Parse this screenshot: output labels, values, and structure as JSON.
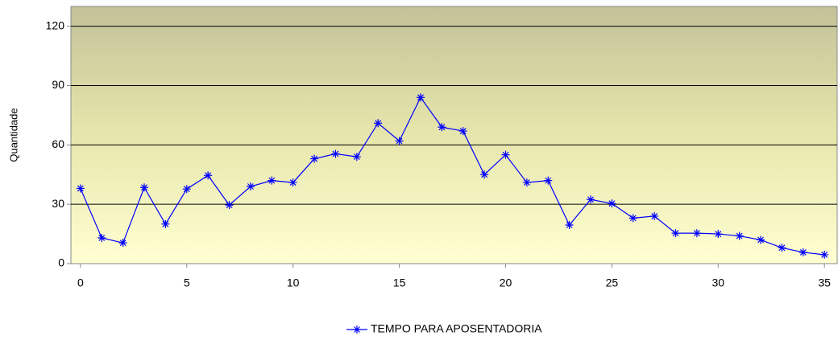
{
  "chart_data": {
    "type": "line",
    "y_label": "Quantidade",
    "x": [
      0,
      1,
      2,
      3,
      4,
      5,
      6,
      7,
      8,
      9,
      10,
      11,
      12,
      13,
      14,
      15,
      16,
      17,
      18,
      19,
      20,
      21,
      22,
      23,
      24,
      25,
      26,
      27,
      28,
      29,
      30,
      31,
      32,
      33,
      34,
      35
    ],
    "series": [
      {
        "name": "TEMPO PARA APOSENTADORIA",
        "color": "#0000ff",
        "values": [
          38,
          13,
          10.5,
          38.5,
          20,
          37.7,
          44.6,
          29.6,
          39,
          42,
          41,
          53,
          55.5,
          54,
          71,
          62,
          84,
          69,
          67,
          45,
          55,
          41,
          42,
          19.5,
          32.4,
          30.4,
          23,
          24,
          15.4,
          15.4,
          15,
          14,
          12,
          8,
          5.7,
          4.5
        ]
      }
    ],
    "xlim": [
      -0.45,
      35.6
    ],
    "xticks": [
      0,
      5,
      10,
      15,
      20,
      25,
      30,
      35
    ],
    "ylim": [
      0,
      130
    ],
    "yticks": [
      0,
      30,
      60,
      90,
      120
    ],
    "grid": true,
    "legend": "bottom"
  }
}
